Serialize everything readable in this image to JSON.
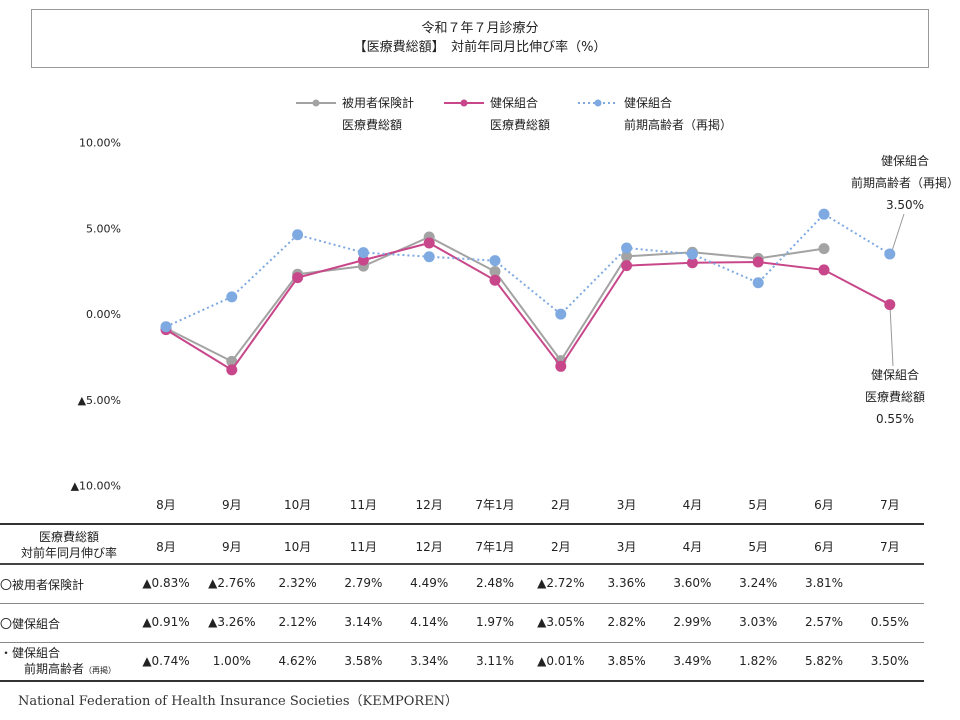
{
  "title": {
    "line1": "令和７年７月診療分",
    "line2": "【医療費総額】　対前年同月比伸び率（%）"
  },
  "legend": [
    {
      "line1": "被用者保険計",
      "line2": "医療費総額"
    },
    {
      "line1": "健保組合",
      "line2": "医療費総額"
    },
    {
      "line1": "健保組合",
      "line2": "前期高齢者（再掲）"
    }
  ],
  "annotations": {
    "blue": {
      "line1": "健保組合",
      "line2": "前期高齢者（再掲）",
      "value": "3.50%"
    },
    "pink": {
      "line1": "健保組合",
      "line2": "医療費総額",
      "value": "0.55%"
    }
  },
  "chart_data": {
    "type": "line",
    "categories": [
      "8月",
      "9月",
      "10月",
      "11月",
      "12月",
      "7年1月",
      "2月",
      "3月",
      "4月",
      "5月",
      "6月",
      "7月"
    ],
    "ylim": [
      -10,
      10
    ],
    "yticks": [
      10,
      5,
      0,
      -5,
      -10
    ],
    "ytick_labels": [
      "10.00%",
      "5.00%",
      "0.00%",
      "▲5.00%",
      "▲10.00%"
    ],
    "series": [
      {
        "name": "被用者保険計 医療費総額",
        "color": "#a3a3a3",
        "dash": "solid",
        "values": [
          -0.83,
          -2.76,
          2.32,
          2.79,
          4.49,
          2.48,
          -2.72,
          3.36,
          3.6,
          3.24,
          3.81,
          null
        ]
      },
      {
        "name": "健保組合 医療費総額",
        "color": "#c8478a",
        "dash": "solid",
        "values": [
          -0.91,
          -3.26,
          2.12,
          3.14,
          4.14,
          1.97,
          -3.05,
          2.82,
          2.99,
          3.03,
          2.57,
          0.55
        ]
      },
      {
        "name": "健保組合 前期高齢者（再掲）",
        "color": "#7ea9e1",
        "dash": "dotted",
        "values": [
          -0.74,
          1.0,
          4.62,
          3.58,
          3.34,
          3.11,
          -0.01,
          3.85,
          3.49,
          1.82,
          5.82,
          3.5
        ]
      }
    ]
  },
  "table": {
    "header_label": [
      "医療費総額",
      "対前年同月伸び率"
    ],
    "months": [
      "8月",
      "9月",
      "10月",
      "11月",
      "12月",
      "7年1月",
      "2月",
      "3月",
      "4月",
      "5月",
      "6月",
      "7月"
    ],
    "rows": [
      {
        "label": "〇被用者保険計",
        "values": [
          "▲0.83%",
          "▲2.76%",
          "2.32%",
          "2.79%",
          "4.49%",
          "2.48%",
          "▲2.72%",
          "3.36%",
          "3.60%",
          "3.24%",
          "3.81%",
          ""
        ]
      },
      {
        "label": "〇健保組合",
        "values": [
          "▲0.91%",
          "▲3.26%",
          "2.12%",
          "3.14%",
          "4.14%",
          "1.97%",
          "▲3.05%",
          "2.82%",
          "2.99%",
          "3.03%",
          "2.57%",
          "0.55%"
        ]
      },
      {
        "label": "・健保組合",
        "label2": "前期高齢者",
        "label2_small": "（再掲）",
        "values": [
          "▲0.74%",
          "1.00%",
          "4.62%",
          "3.58%",
          "3.34%",
          "3.11%",
          "▲0.01%",
          "3.85%",
          "3.49%",
          "1.82%",
          "5.82%",
          "3.50%"
        ]
      }
    ]
  },
  "footer": "National Federation of Health Insurance Societies（KEMPOREN）"
}
